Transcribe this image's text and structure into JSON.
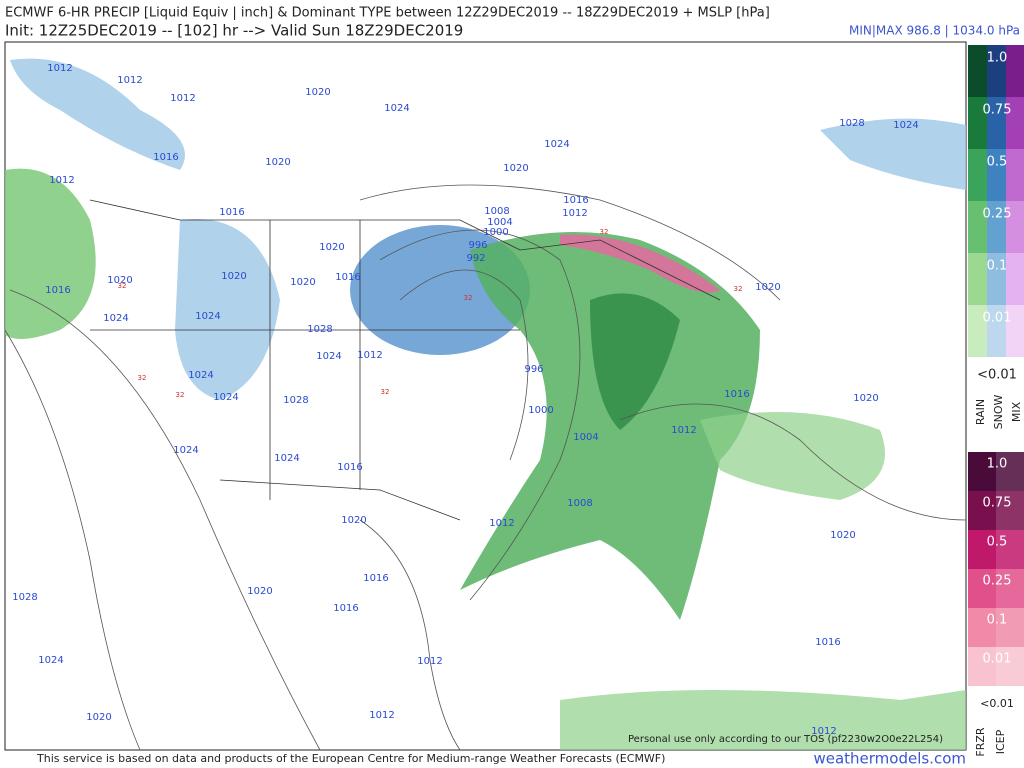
{
  "header": {
    "title": "ECMWF 6-HR PRECIP [Liquid Equiv | inch] & Dominant TYPE between 12Z29DEC2019 -- 18Z29DEC2019 + MSLP [hPa]",
    "init": "Init: 12Z25DEC2019 -- [102] hr --> Valid Sun 18Z29DEC2019",
    "minmax": "MIN|MAX 986.8 | 1034.0 hPa"
  },
  "legend": {
    "precip_levels": [
      "1.0",
      "0.75",
      "0.5",
      "0.25",
      "0.1",
      "0.01"
    ],
    "precip_below": "<0.01",
    "type_labels": [
      "RAIN",
      "SNOW",
      "MIX"
    ],
    "icep_levels": [
      "1.0",
      "0.75",
      "0.5",
      "0.25",
      "0.1",
      "0.01"
    ],
    "icep_below": "<0.01",
    "icep_labels": [
      "FRZR",
      "ICEP"
    ]
  },
  "map": {
    "isobar_labels": [
      "1012",
      "1012",
      "1012",
      "1020",
      "1024",
      "1024",
      "1020",
      "1016",
      "1020",
      "1012",
      "1016",
      "1008",
      "1016",
      "1012",
      "1004",
      "1000",
      "996",
      "992",
      "1020",
      "1020",
      "1020",
      "1016",
      "1020",
      "1016",
      "1024",
      "1024",
      "1028",
      "1024",
      "1012",
      "1024",
      "996",
      "1024",
      "1028",
      "1000",
      "1016",
      "1020",
      "1004",
      "1012",
      "1024",
      "1024",
      "1016",
      "1008",
      "1012",
      "1020",
      "1020",
      "1016",
      "1020",
      "1028",
      "1016",
      "1024",
      "1016",
      "1012",
      "1012",
      "1020",
      "1012",
      "1028",
      "1024",
      "1020"
    ],
    "freezing_labels": [
      "32",
      "32",
      "32",
      "32",
      "32",
      "32",
      "32"
    ]
  },
  "footer": {
    "notice": "Personal use only according to our TOS (pf2230w2O0e22L254)",
    "source": "This service is based on data and products of the European Centre for Medium-range Weather Forecasts (ECMWF)",
    "brand": "weathermodels.com"
  }
}
